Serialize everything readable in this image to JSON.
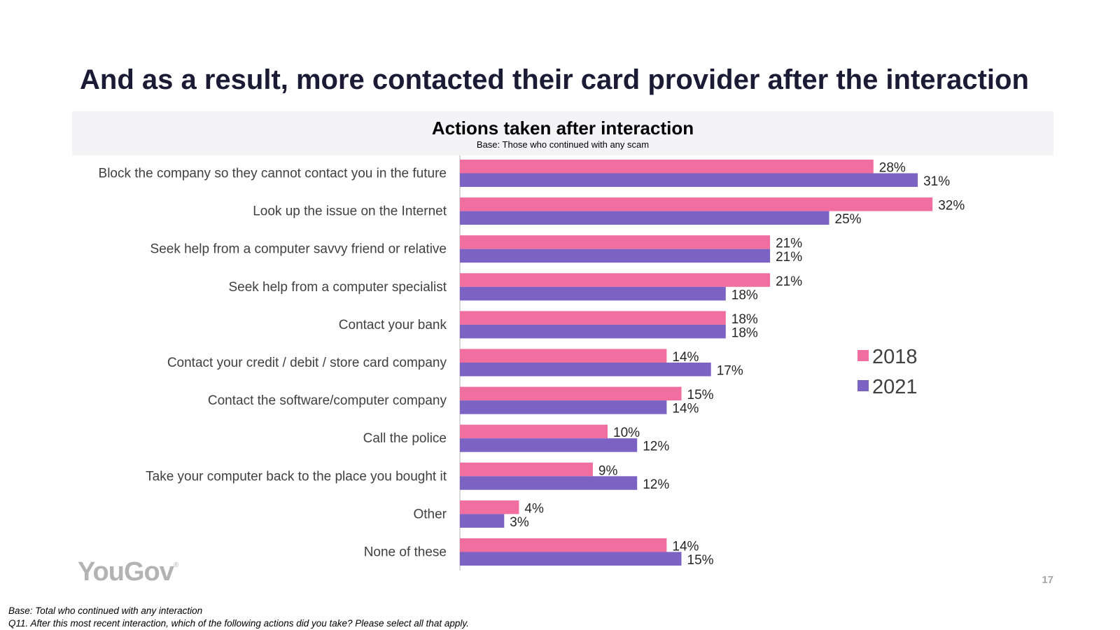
{
  "page": {
    "title": "And as a result, more contacted their card provider after the interaction",
    "page_number": "17",
    "logo_text": "YouGov",
    "logo_mark": "®",
    "footnotes": [
      "Base: Total who continued with any interaction",
      "Q11. After this most recent interaction, which of the following actions did you take? Please select all that apply."
    ]
  },
  "chart_data": {
    "type": "bar",
    "orientation": "horizontal",
    "title": "Actions taken after interaction",
    "subtitle": "Base: Those who continued with any scam",
    "categories": [
      "Block the company so they cannot contact you in the future",
      "Look up the issue on the Internet",
      "Seek help from a computer savvy friend or relative",
      "Seek help from a computer specialist",
      "Contact your bank",
      "Contact your credit / debit / store card company",
      "Contact the software/computer company",
      "Call the police",
      "Take your computer back to the place you bought it",
      "Other",
      "None of these"
    ],
    "series": [
      {
        "name": "2018",
        "color": "#f06fa0",
        "values": [
          28,
          32,
          21,
          21,
          18,
          14,
          15,
          10,
          9,
          4,
          14
        ]
      },
      {
        "name": "2021",
        "color": "#7c63c3",
        "values": [
          31,
          25,
          21,
          18,
          18,
          17,
          14,
          12,
          12,
          3,
          15
        ]
      }
    ],
    "value_suffix": "%",
    "xlim": [
      0,
      32
    ],
    "grid": false,
    "legend_position": "right"
  }
}
